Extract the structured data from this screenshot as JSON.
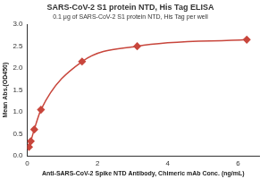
{
  "chart_data": {
    "type": "scatter",
    "title": "SARS-CoV-2 S1 protein NTD, His Tag ELISA",
    "subtitle": "0.1 μg of SARS-CoV-2 S1 protein NTD, His Tag per well",
    "x_label": "Anti-SARS-CoV-2 Spike NTD Antibody, Chimeric mAb Conc. (ng/mL)",
    "y_label": "Mean Abs.(OD450)",
    "x": [
      0.05,
      0.1,
      0.2,
      0.39,
      1.56,
      3.13,
      6.25
    ],
    "values": [
      0.2,
      0.33,
      0.6,
      1.05,
      2.15,
      2.5,
      2.65
    ],
    "color": "#c8463c",
    "marker": "diamond",
    "line_style": "solid",
    "xlim": [
      0,
      6.6
    ],
    "xticks": [
      0,
      2,
      4,
      6
    ],
    "ylim": [
      0,
      3
    ],
    "yticks": [
      {
        "value": 0,
        "label": "0.0"
      },
      {
        "value": 0.5,
        "label": "0.5"
      },
      {
        "value": 1,
        "label": "1.0"
      },
      {
        "value": 1.5,
        "label": "1.5"
      },
      {
        "value": 2,
        "label": "2.0"
      },
      {
        "value": 2.5,
        "label": "2.5"
      },
      {
        "value": 3,
        "label": "3.0"
      }
    ],
    "grid": false
  }
}
